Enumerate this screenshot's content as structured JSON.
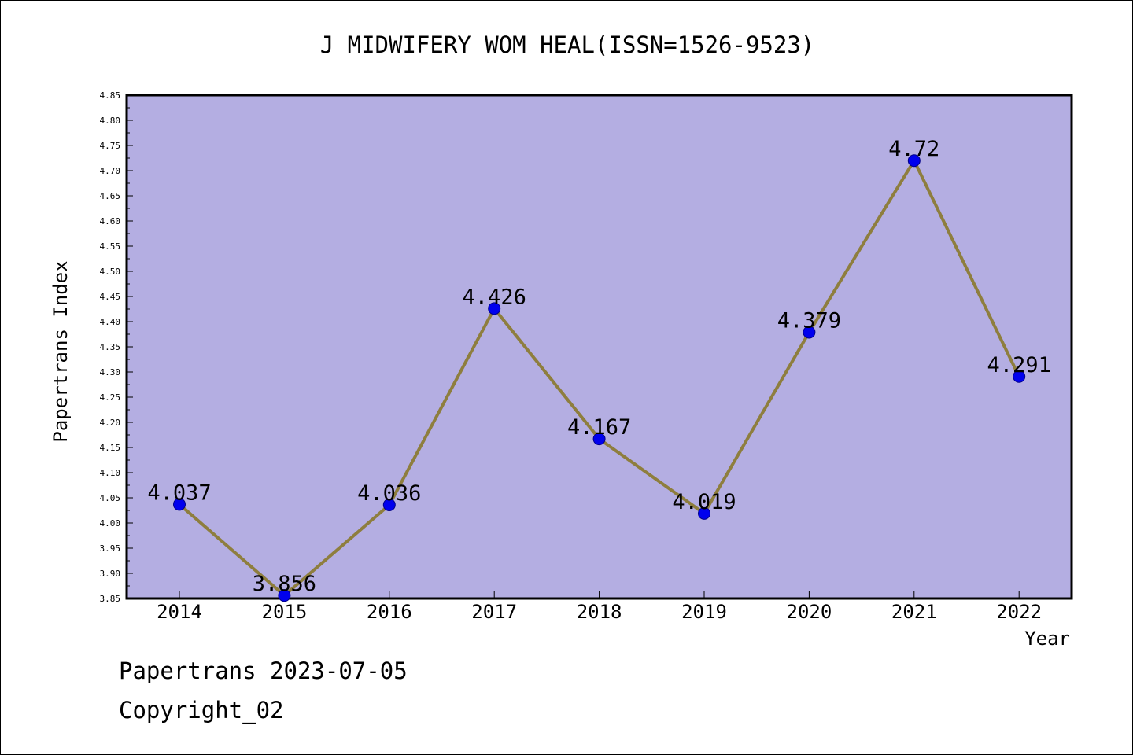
{
  "chart_data": {
    "type": "line",
    "title": "J MIDWIFERY WOM HEAL(ISSN=1526-9523)",
    "xlabel": "Year",
    "ylabel": "Papertrans Index",
    "categories": [
      "2014",
      "2015",
      "2016",
      "2017",
      "2018",
      "2019",
      "2020",
      "2021",
      "2022"
    ],
    "values": [
      4.037,
      3.856,
      4.036,
      4.426,
      4.167,
      4.019,
      4.379,
      4.72,
      4.291
    ],
    "data_labels": [
      "4.037",
      "3.856",
      "4.036",
      "4.426",
      "4.167",
      "4.019",
      "4.379",
      "4.72",
      "4.291"
    ],
    "ylim": [
      3.85,
      4.85
    ],
    "ytick_step": 0.05,
    "ytick_decimals": 2,
    "grid": false,
    "colors": {
      "plot_background": "#b4aee2",
      "line": "#8e7e3e",
      "marker_fill": "#0000ee",
      "marker_edge": "#00008b"
    }
  },
  "footer": {
    "date_line": "Papertrans 2023-07-05",
    "copyright_line": "Copyright_02"
  }
}
